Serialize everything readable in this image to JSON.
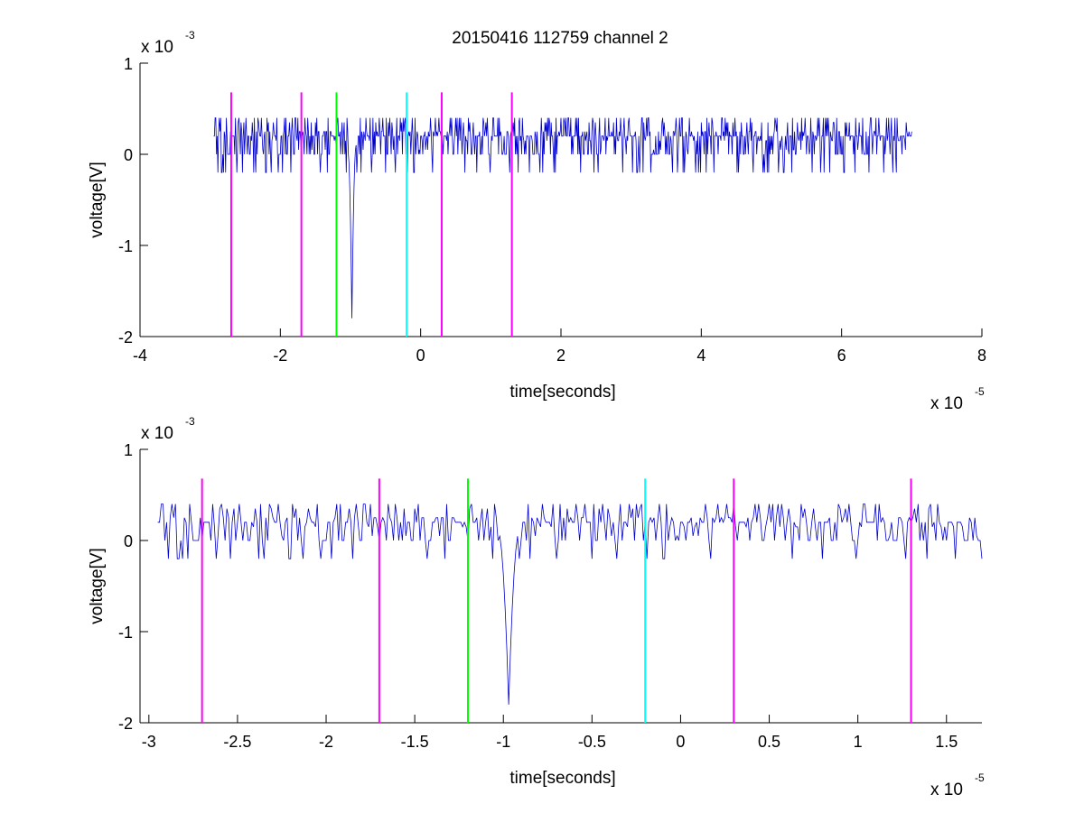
{
  "title": "20150416 112759 channel 2",
  "colors": {
    "signal": "#0000cc",
    "magenta": "#ff00ff",
    "green": "#00ff00",
    "cyan": "#00ffff",
    "axes": "#000000",
    "background": "#ffffff"
  },
  "chart_data": [
    {
      "type": "line",
      "title": "20150416 112759 channel 2",
      "xlabel": "time[seconds]",
      "ylabel": "voltage[V]",
      "x_multiplier_label": "x 10",
      "x_multiplier_exp": "-5",
      "y_multiplier_label": "x 10",
      "y_multiplier_exp": "-3",
      "xlim": [
        -4,
        8
      ],
      "ylim": [
        -2,
        1
      ],
      "xticks": [
        -4,
        -2,
        0,
        2,
        4,
        6,
        8
      ],
      "xtick_labels": [
        "-4",
        "-2",
        "0",
        "2",
        "4",
        "6",
        "8"
      ],
      "yticks": [
        -2,
        -1,
        0,
        1
      ],
      "ytick_labels": [
        "-2",
        "-1",
        "0",
        "1"
      ],
      "grid": false,
      "series": [
        {
          "signal_window": [
            -2.95,
            7.0
          ],
          "baseline": 0.1,
          "noise_levels": [
            0.0,
            0.2,
            0.4,
            -0.2
          ],
          "spike": {
            "x": -0.98,
            "min": -1.8
          }
        }
      ],
      "vertical_markers": [
        {
          "x": -2.7,
          "color": "magenta",
          "ymin": -2,
          "ymax": 0.68
        },
        {
          "x": -1.7,
          "color": "magenta",
          "ymin": -2,
          "ymax": 0.68
        },
        {
          "x": -1.2,
          "color": "green",
          "ymin": -2,
          "ymax": 0.68
        },
        {
          "x": -0.2,
          "color": "cyan",
          "ymin": -2,
          "ymax": 0.68
        },
        {
          "x": 0.3,
          "color": "magenta",
          "ymin": -2,
          "ymax": 0.68
        },
        {
          "x": 1.3,
          "color": "magenta",
          "ymin": -2,
          "ymax": 0.68
        }
      ]
    },
    {
      "type": "line",
      "xlabel": "time[seconds]",
      "ylabel": "voltage[V]",
      "x_multiplier_label": "x 10",
      "x_multiplier_exp": "-5",
      "y_multiplier_label": "x 10",
      "y_multiplier_exp": "-3",
      "xlim": [
        -3.05,
        1.7
      ],
      "ylim": [
        -2,
        1
      ],
      "xticks": [
        -3,
        -2.5,
        -2,
        -1.5,
        -1,
        -0.5,
        0,
        0.5,
        1,
        1.5
      ],
      "xtick_labels": [
        "-3",
        "-2.5",
        "-2",
        "-1.5",
        "-1",
        "-0.5",
        "0",
        "0.5",
        "1",
        "1.5"
      ],
      "yticks": [
        -2,
        -1,
        0,
        1
      ],
      "ytick_labels": [
        "-2",
        "-1",
        "0",
        "1"
      ],
      "grid": false,
      "series": [
        {
          "signal_window": [
            -2.95,
            1.7
          ],
          "baseline": 0.1,
          "noise_levels": [
            0.0,
            0.2,
            0.4,
            -0.2
          ],
          "spike": {
            "x": -0.97,
            "min": -1.8
          }
        }
      ],
      "vertical_markers": [
        {
          "x": -2.7,
          "color": "magenta",
          "ymin": -2,
          "ymax": 0.68
        },
        {
          "x": -1.7,
          "color": "magenta",
          "ymin": -2,
          "ymax": 0.68
        },
        {
          "x": -1.2,
          "color": "green",
          "ymin": -2,
          "ymax": 0.68
        },
        {
          "x": -0.2,
          "color": "cyan",
          "ymin": -2,
          "ymax": 0.68
        },
        {
          "x": 0.3,
          "color": "magenta",
          "ymin": -2,
          "ymax": 0.68
        },
        {
          "x": 1.3,
          "color": "magenta",
          "ymin": -2,
          "ymax": 0.68
        }
      ]
    }
  ]
}
